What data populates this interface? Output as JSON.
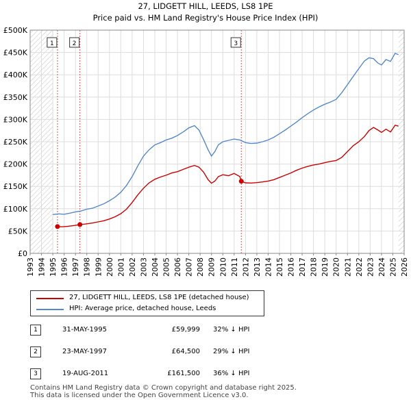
{
  "title_line1": "27, LIDGETT HILL, LEEDS, LS8 1PE",
  "title_line2": "Price paid vs. HM Land Registry's House Price Index (HPI)",
  "chart_data": {
    "type": "line",
    "xlabel": "",
    "ylabel": "",
    "xlim": [
      1993,
      2026
    ],
    "ylim": [
      0,
      500000
    ],
    "x_ticks": [
      "1993",
      "1994",
      "1995",
      "1996",
      "1997",
      "1998",
      "1999",
      "2000",
      "2001",
      "2002",
      "2003",
      "2004",
      "2005",
      "2006",
      "2007",
      "2008",
      "2009",
      "2010",
      "2011",
      "2012",
      "2013",
      "2014",
      "2015",
      "2016",
      "2017",
      "2018",
      "2019",
      "2020",
      "2021",
      "2022",
      "2023",
      "2024",
      "2025",
      "2026"
    ],
    "y_ticks": [
      {
        "value": 0,
        "label": "£0"
      },
      {
        "value": 50000,
        "label": "£50K"
      },
      {
        "value": 100000,
        "label": "£100K"
      },
      {
        "value": 150000,
        "label": "£150K"
      },
      {
        "value": 200000,
        "label": "£200K"
      },
      {
        "value": 250000,
        "label": "£250K"
      },
      {
        "value": 300000,
        "label": "£300K"
      },
      {
        "value": 350000,
        "label": "£350K"
      },
      {
        "value": 400000,
        "label": "£400K"
      },
      {
        "value": 450000,
        "label": "£450K"
      },
      {
        "value": 500000,
        "label": "£500K"
      }
    ],
    "series": [
      {
        "name": "27, LIDGETT HILL, LEEDS, LS8 1PE (detached house)",
        "color": "#cc0000",
        "x": [
          1995.41,
          1995.8,
          1996.3,
          1996.9,
          1997.39,
          1997.8,
          1998.5,
          1999.0,
          1999.5,
          2000.0,
          2000.5,
          2001.0,
          2001.5,
          2002.0,
          2002.5,
          2003.0,
          2003.5,
          2004.0,
          2004.5,
          2005.0,
          2005.5,
          2006.0,
          2006.5,
          2007.0,
          2007.5,
          2007.9,
          2008.3,
          2008.7,
          2009.0,
          2009.3,
          2009.6,
          2010.0,
          2010.5,
          2011.0,
          2011.5,
          2011.63,
          2012.0,
          2012.5,
          2013.0,
          2013.5,
          2014.0,
          2014.5,
          2015.0,
          2015.5,
          2016.0,
          2016.5,
          2017.0,
          2017.5,
          2018.0,
          2018.5,
          2019.0,
          2019.5,
          2020.0,
          2020.5,
          2021.0,
          2021.5,
          2022.0,
          2022.5,
          2022.9,
          2023.3,
          2023.7,
          2024.0,
          2024.4,
          2024.8,
          2025.2,
          2025.5
        ],
        "values": [
          59999,
          59500,
          60500,
          62500,
          64500,
          65500,
          68000,
          70500,
          73000,
          77000,
          82000,
          89000,
          99000,
          114000,
          131000,
          146000,
          158000,
          166000,
          171000,
          175000,
          180000,
          183000,
          188000,
          193000,
          197000,
          193000,
          182000,
          165000,
          157000,
          162000,
          172000,
          176000,
          174000,
          179000,
          172000,
          161500,
          158000,
          157500,
          158500,
          160000,
          162000,
          165000,
          170000,
          175000,
          180000,
          186000,
          191000,
          195000,
          198000,
          200000,
          203000,
          206000,
          208000,
          215000,
          228000,
          241000,
          250000,
          262000,
          275000,
          282000,
          276000,
          271000,
          278000,
          272000,
          287000,
          285000
        ]
      },
      {
        "name": "HPI: Average price, detached house, Leeds",
        "color": "#5588cc",
        "x": [
          1995.0,
          1995.5,
          1996.0,
          1996.5,
          1997.0,
          1997.5,
          1998.0,
          1998.5,
          1999.0,
          1999.5,
          2000.0,
          2000.5,
          2001.0,
          2001.5,
          2002.0,
          2002.5,
          2003.0,
          2003.5,
          2004.0,
          2004.5,
          2005.0,
          2005.5,
          2006.0,
          2006.5,
          2007.0,
          2007.5,
          2007.9,
          2008.3,
          2008.7,
          2009.0,
          2009.3,
          2009.6,
          2010.0,
          2010.5,
          2011.0,
          2011.5,
          2012.0,
          2012.5,
          2013.0,
          2013.5,
          2014.0,
          2014.5,
          2015.0,
          2015.5,
          2016.0,
          2016.5,
          2017.0,
          2017.5,
          2018.0,
          2018.5,
          2019.0,
          2019.5,
          2020.0,
          2020.5,
          2021.0,
          2021.5,
          2022.0,
          2022.5,
          2022.9,
          2023.3,
          2023.7,
          2024.0,
          2024.4,
          2024.8,
          2025.2,
          2025.5
        ],
        "values": [
          87000,
          88500,
          87500,
          90000,
          93000,
          95000,
          99000,
          101000,
          106000,
          111000,
          118000,
          126000,
          137000,
          152000,
          172000,
          196000,
          218000,
          232000,
          243000,
          248000,
          254000,
          258000,
          264000,
          272000,
          281000,
          286000,
          276000,
          255000,
          232000,
          218000,
          228000,
          243000,
          250000,
          253000,
          256000,
          254000,
          248000,
          246000,
          247000,
          250000,
          254000,
          260000,
          268000,
          276000,
          285000,
          294000,
          304000,
          313000,
          321000,
          328000,
          334000,
          339000,
          345000,
          360000,
          378000,
          396000,
          414000,
          431000,
          438000,
          436000,
          426000,
          422000,
          434000,
          430000,
          448000,
          445000
        ]
      }
    ],
    "sales": [
      {
        "label": "1",
        "x": 1995.41,
        "value": 59999
      },
      {
        "label": "2",
        "x": 1997.39,
        "value": 64500
      },
      {
        "label": "3",
        "x": 2011.63,
        "value": 161500
      }
    ],
    "shade_ranges": [
      [
        1993,
        1995.0
      ],
      [
        2025.5,
        2026
      ]
    ]
  },
  "legend": {
    "items": [
      {
        "label": "27, LIDGETT HILL, LEEDS, LS8 1PE (detached house)",
        "color": "#cc0000"
      },
      {
        "label": "HPI: Average price, detached house, Leeds",
        "color": "#5588cc"
      }
    ]
  },
  "transactions": [
    {
      "num": "1",
      "date": "31-MAY-1995",
      "price": "£59,999",
      "hpi": "32% ↓ HPI"
    },
    {
      "num": "2",
      "date": "23-MAY-1997",
      "price": "£64,500",
      "hpi": "29% ↓ HPI"
    },
    {
      "num": "3",
      "date": "19-AUG-2011",
      "price": "£161,500",
      "hpi": "36% ↓ HPI"
    }
  ],
  "footer": {
    "line1": "Contains HM Land Registry data © Crown copyright and database right 2025.",
    "line2": "This data is licensed under the Open Government Licence v3.0."
  }
}
